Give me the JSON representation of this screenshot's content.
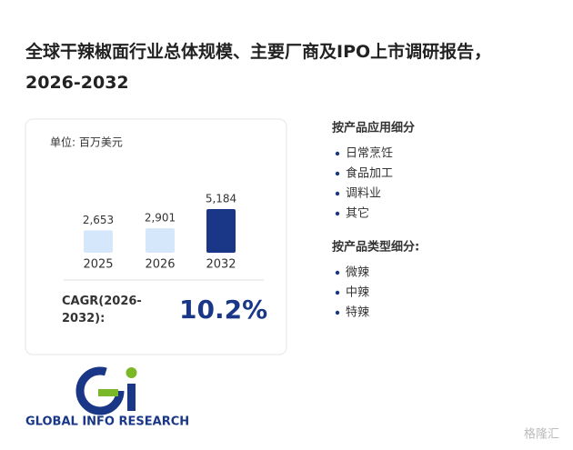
{
  "header": {
    "title": "全球干辣椒面行业总体规模、主要厂商及IPO上市调研报告，2026-2032"
  },
  "chart_data": {
    "type": "bar",
    "subtitle": "单位: 百万美元",
    "categories": [
      "2025",
      "2026",
      "2032"
    ],
    "values": [
      2653,
      2901,
      5184
    ],
    "value_labels": [
      "2,653",
      "2,901",
      "5,184"
    ],
    "colors": [
      "#d5e8fb",
      "#d5e8fb",
      "#1a3787"
    ]
  },
  "cagr": {
    "label": "CAGR(2026-2032):",
    "value": "10.2%"
  },
  "segments": [
    {
      "title": "按产品应用细分",
      "items": [
        "日常烹饪",
        "食品加工",
        "调料业",
        "其它"
      ]
    },
    {
      "title": "按产品类型细分:",
      "items": [
        "微辣",
        "中辣",
        "特辣"
      ]
    }
  ],
  "logo": "GLOBAL INFO RESEARCH",
  "watermark": "格隆汇"
}
